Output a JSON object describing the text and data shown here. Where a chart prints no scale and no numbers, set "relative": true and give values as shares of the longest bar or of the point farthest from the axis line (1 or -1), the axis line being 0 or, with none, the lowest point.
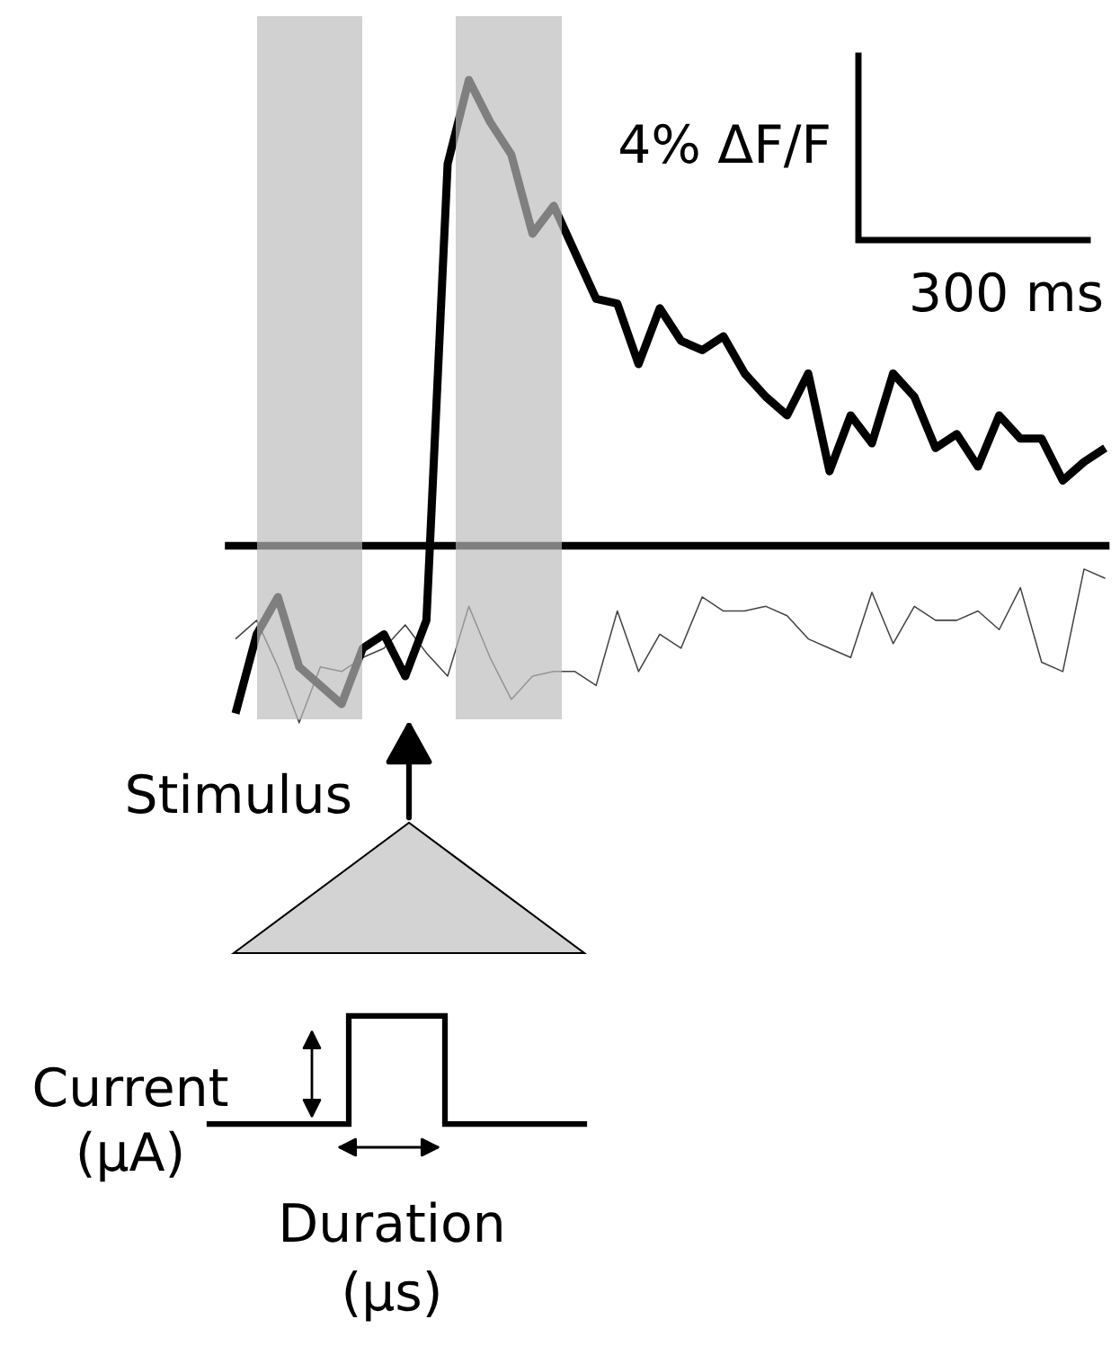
{
  "chart_data": {
    "type": "line",
    "relative": true,
    "categories": [
      null,
      null,
      null,
      null,
      null,
      null,
      null,
      null,
      null,
      null,
      null,
      null,
      null,
      null,
      null,
      null,
      null,
      null,
      null,
      null,
      null,
      null,
      null,
      null,
      null,
      null,
      null,
      null,
      null,
      null,
      null,
      null,
      null,
      null,
      null,
      null,
      null,
      null,
      null,
      null,
      null,
      null
    ],
    "series": [
      {
        "color": "#000000",
        "values": [
          -0.36,
          -0.19,
          -0.11,
          -0.26,
          -0.3,
          -0.34,
          -0.22,
          -0.19,
          -0.28,
          -0.16,
          0.82,
          1.0,
          0.91,
          0.84,
          0.67,
          0.73,
          0.63,
          0.53,
          0.52,
          0.39,
          0.51,
          0.44,
          0.42,
          0.45,
          0.37,
          0.32,
          0.28,
          0.37,
          0.16,
          0.28,
          0.22,
          0.37,
          0.32,
          0.21,
          0.24,
          0.17,
          0.28,
          0.23,
          0.23,
          0.14,
          0.18,
          0.21
        ]
      },
      {
        "color": "#444444",
        "values": [
          -0.2,
          -0.16,
          -0.26,
          -0.38,
          -0.26,
          -0.27,
          -0.24,
          -0.22,
          -0.17,
          -0.23,
          -0.28,
          -0.13,
          -0.24,
          -0.33,
          -0.28,
          -0.27,
          -0.27,
          -0.3,
          -0.14,
          -0.27,
          -0.19,
          -0.22,
          -0.11,
          -0.14,
          -0.14,
          -0.13,
          -0.15,
          -0.2,
          -0.22,
          -0.24,
          -0.1,
          -0.21,
          -0.13,
          -0.16,
          -0.16,
          -0.14,
          -0.18,
          -0.09,
          -0.25,
          -0.27,
          -0.05,
          -0.07
        ]
      }
    ],
    "ref_lines": [
      {
        "axis": "y",
        "value": 0,
        "color": "#000000"
      }
    ],
    "tick_labels": false,
    "line_style": "solid",
    "marker": "none",
    "annotations": [
      "4% ΔF/F",
      "300 ms",
      "Stimulus",
      "Current\n(μA)",
      "Duration\n(μs)"
    ]
  }
}
